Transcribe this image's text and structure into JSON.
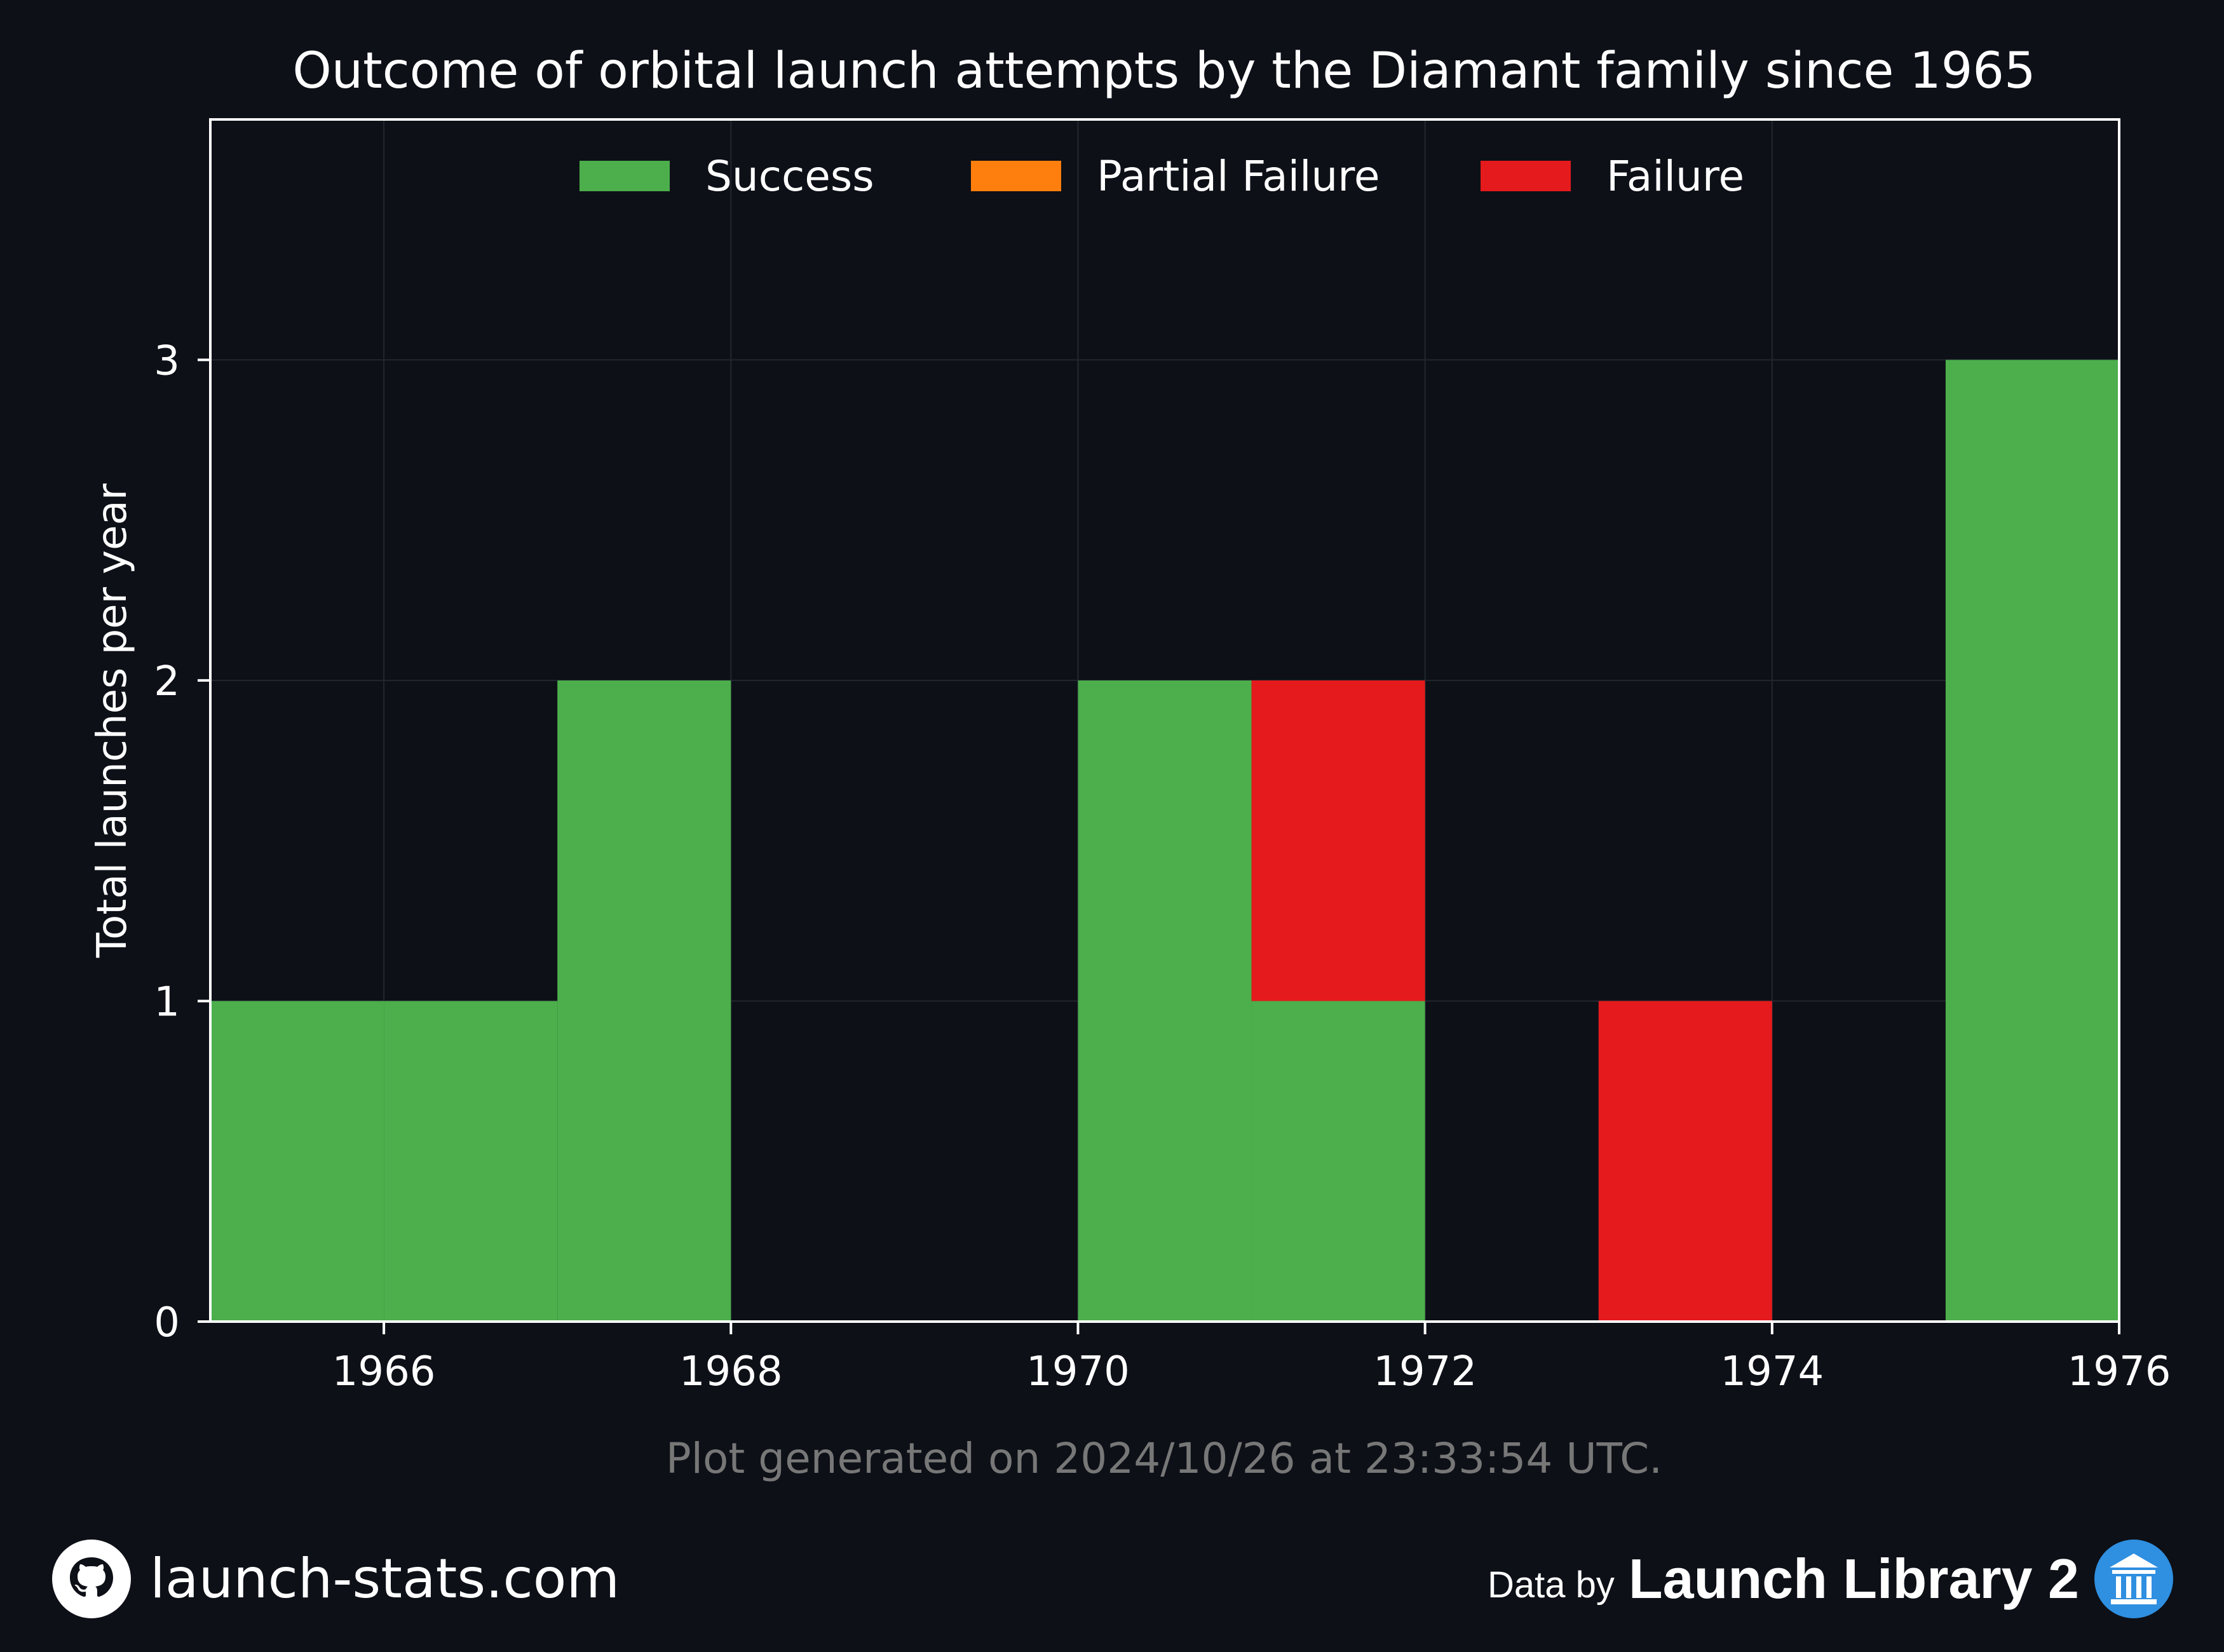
{
  "chart_data": {
    "type": "bar",
    "stacked": true,
    "title": "Outcome of orbital launch attempts by the Diamant family since 1965",
    "ylabel": "Total launches per year",
    "xlabel": "",
    "x": [
      1965,
      1966,
      1967,
      1968,
      1969,
      1970,
      1971,
      1972,
      1973,
      1974,
      1975
    ],
    "xlim": [
      1965,
      1976
    ],
    "ylim": [
      0,
      3.75
    ],
    "xticks": [
      1966,
      1968,
      1970,
      1972,
      1974,
      1976
    ],
    "yticks": [
      0,
      1,
      2,
      3
    ],
    "grid": true,
    "legend_position": "top-center",
    "series": [
      {
        "name": "Success",
        "color": "#4caf4c",
        "values": [
          1,
          1,
          2,
          0,
          0,
          2,
          1,
          0,
          0,
          0,
          3
        ]
      },
      {
        "name": "Partial Failure",
        "color": "#ff7f0e",
        "values": [
          0,
          0,
          0,
          0,
          0,
          0,
          0,
          0,
          0,
          0,
          0
        ]
      },
      {
        "name": "Failure",
        "color": "#e41a1c",
        "values": [
          0,
          0,
          0,
          0,
          0,
          0,
          1,
          0,
          1,
          0,
          0
        ]
      }
    ]
  },
  "footnote": "Plot generated on 2024/10/26 at 23:33:54 UTC.",
  "footer": {
    "site_label": "launch-stats.com",
    "site_icon": "github-icon",
    "data_by_label": "Data by",
    "library_label": "Launch Library 2",
    "library_icon": "library-icon"
  }
}
